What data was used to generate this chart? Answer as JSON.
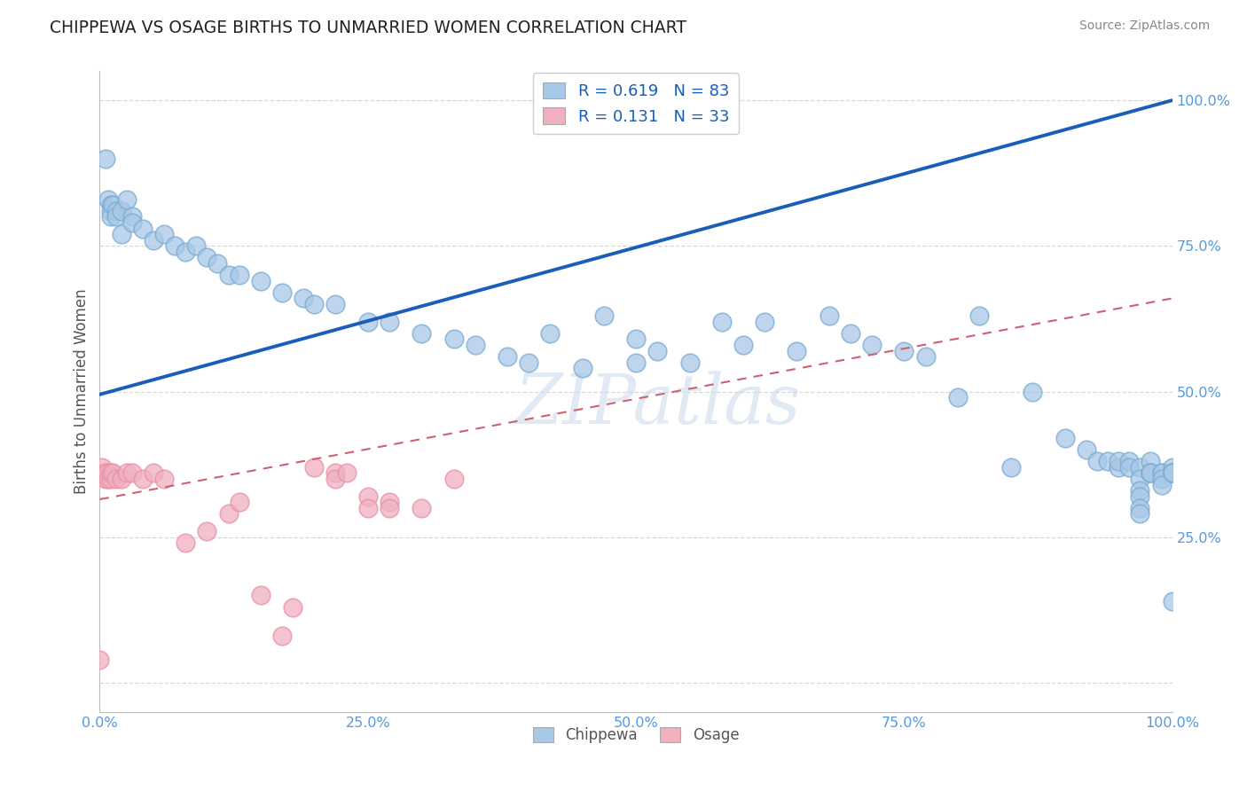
{
  "title": "CHIPPEWA VS OSAGE BIRTHS TO UNMARRIED WOMEN CORRELATION CHART",
  "source": "Source: ZipAtlas.com",
  "ylabel": "Births to Unmarried Women",
  "xlim": [
    0.0,
    1.0
  ],
  "ylim": [
    -0.05,
    1.05
  ],
  "xtick_vals": [
    0.0,
    0.25,
    0.5,
    0.75,
    1.0
  ],
  "ytick_vals": [
    0.0,
    0.25,
    0.5,
    0.75,
    1.0
  ],
  "xticklabels": [
    "0.0%",
    "25.0%",
    "50.0%",
    "75.0%",
    "100.0%"
  ],
  "yticklabels": [
    "",
    "25.0%",
    "50.0%",
    "75.0%",
    "100.0%"
  ],
  "chippewa_R": 0.619,
  "chippewa_N": 83,
  "osage_R": 0.131,
  "osage_N": 33,
  "chippewa_color": "#a8c8e8",
  "osage_color": "#f0b0c0",
  "chippewa_edge_color": "#7aacd0",
  "osage_edge_color": "#e890a8",
  "chippewa_line_color": "#1a5eb8",
  "osage_line_color": "#d06070",
  "watermark": "ZIPatlas",
  "tick_color": "#5599dd",
  "grid_color": "#d8d8d8",
  "chippewa_x": [
    0.005,
    0.008,
    0.01,
    0.01,
    0.01,
    0.012,
    0.015,
    0.015,
    0.02,
    0.02,
    0.025,
    0.03,
    0.03,
    0.04,
    0.05,
    0.06,
    0.07,
    0.08,
    0.09,
    0.1,
    0.11,
    0.12,
    0.13,
    0.15,
    0.17,
    0.19,
    0.2,
    0.22,
    0.25,
    0.27,
    0.3,
    0.33,
    0.35,
    0.38,
    0.4,
    0.42,
    0.45,
    0.47,
    0.5,
    0.5,
    0.52,
    0.55,
    0.58,
    0.6,
    0.62,
    0.65,
    0.68,
    0.7,
    0.72,
    0.75,
    0.77,
    0.8,
    0.82,
    0.85,
    0.87,
    0.9,
    0.92,
    0.93,
    0.94,
    0.95,
    0.95,
    0.96,
    0.96,
    0.97,
    0.97,
    0.97,
    0.97,
    0.97,
    0.97,
    0.98,
    0.98,
    0.98,
    0.98,
    0.99,
    0.99,
    0.99,
    0.99,
    1.0,
    1.0,
    1.0,
    1.0,
    1.0,
    1.0
  ],
  "chippewa_y": [
    0.9,
    0.83,
    0.82,
    0.81,
    0.8,
    0.82,
    0.81,
    0.8,
    0.77,
    0.81,
    0.83,
    0.8,
    0.79,
    0.78,
    0.76,
    0.77,
    0.75,
    0.74,
    0.75,
    0.73,
    0.72,
    0.7,
    0.7,
    0.69,
    0.67,
    0.66,
    0.65,
    0.65,
    0.62,
    0.62,
    0.6,
    0.59,
    0.58,
    0.56,
    0.55,
    0.6,
    0.54,
    0.63,
    0.55,
    0.59,
    0.57,
    0.55,
    0.62,
    0.58,
    0.62,
    0.57,
    0.63,
    0.6,
    0.58,
    0.57,
    0.56,
    0.49,
    0.63,
    0.37,
    0.5,
    0.42,
    0.4,
    0.38,
    0.38,
    0.37,
    0.38,
    0.38,
    0.37,
    0.37,
    0.35,
    0.33,
    0.32,
    0.3,
    0.29,
    0.38,
    0.36,
    0.36,
    0.36,
    0.36,
    0.36,
    0.35,
    0.34,
    0.36,
    0.37,
    0.36,
    0.36,
    0.36,
    0.14
  ],
  "osage_x": [
    0.0,
    0.002,
    0.005,
    0.005,
    0.007,
    0.008,
    0.01,
    0.01,
    0.012,
    0.015,
    0.02,
    0.025,
    0.03,
    0.04,
    0.05,
    0.06,
    0.08,
    0.1,
    0.12,
    0.13,
    0.15,
    0.17,
    0.18,
    0.2,
    0.22,
    0.22,
    0.23,
    0.25,
    0.25,
    0.27,
    0.27,
    0.3,
    0.33
  ],
  "osage_y": [
    0.04,
    0.37,
    0.36,
    0.35,
    0.36,
    0.35,
    0.35,
    0.36,
    0.36,
    0.35,
    0.35,
    0.36,
    0.36,
    0.35,
    0.36,
    0.35,
    0.24,
    0.26,
    0.29,
    0.31,
    0.15,
    0.08,
    0.13,
    0.37,
    0.36,
    0.35,
    0.36,
    0.32,
    0.3,
    0.31,
    0.3,
    0.3,
    0.35
  ],
  "chippewa_line_x0": 0.0,
  "chippewa_line_y0": 0.495,
  "chippewa_line_x1": 1.0,
  "chippewa_line_y1": 1.0,
  "osage_line_x0": 0.0,
  "osage_line_y0": 0.315,
  "osage_line_x1": 1.0,
  "osage_line_y1": 0.66
}
